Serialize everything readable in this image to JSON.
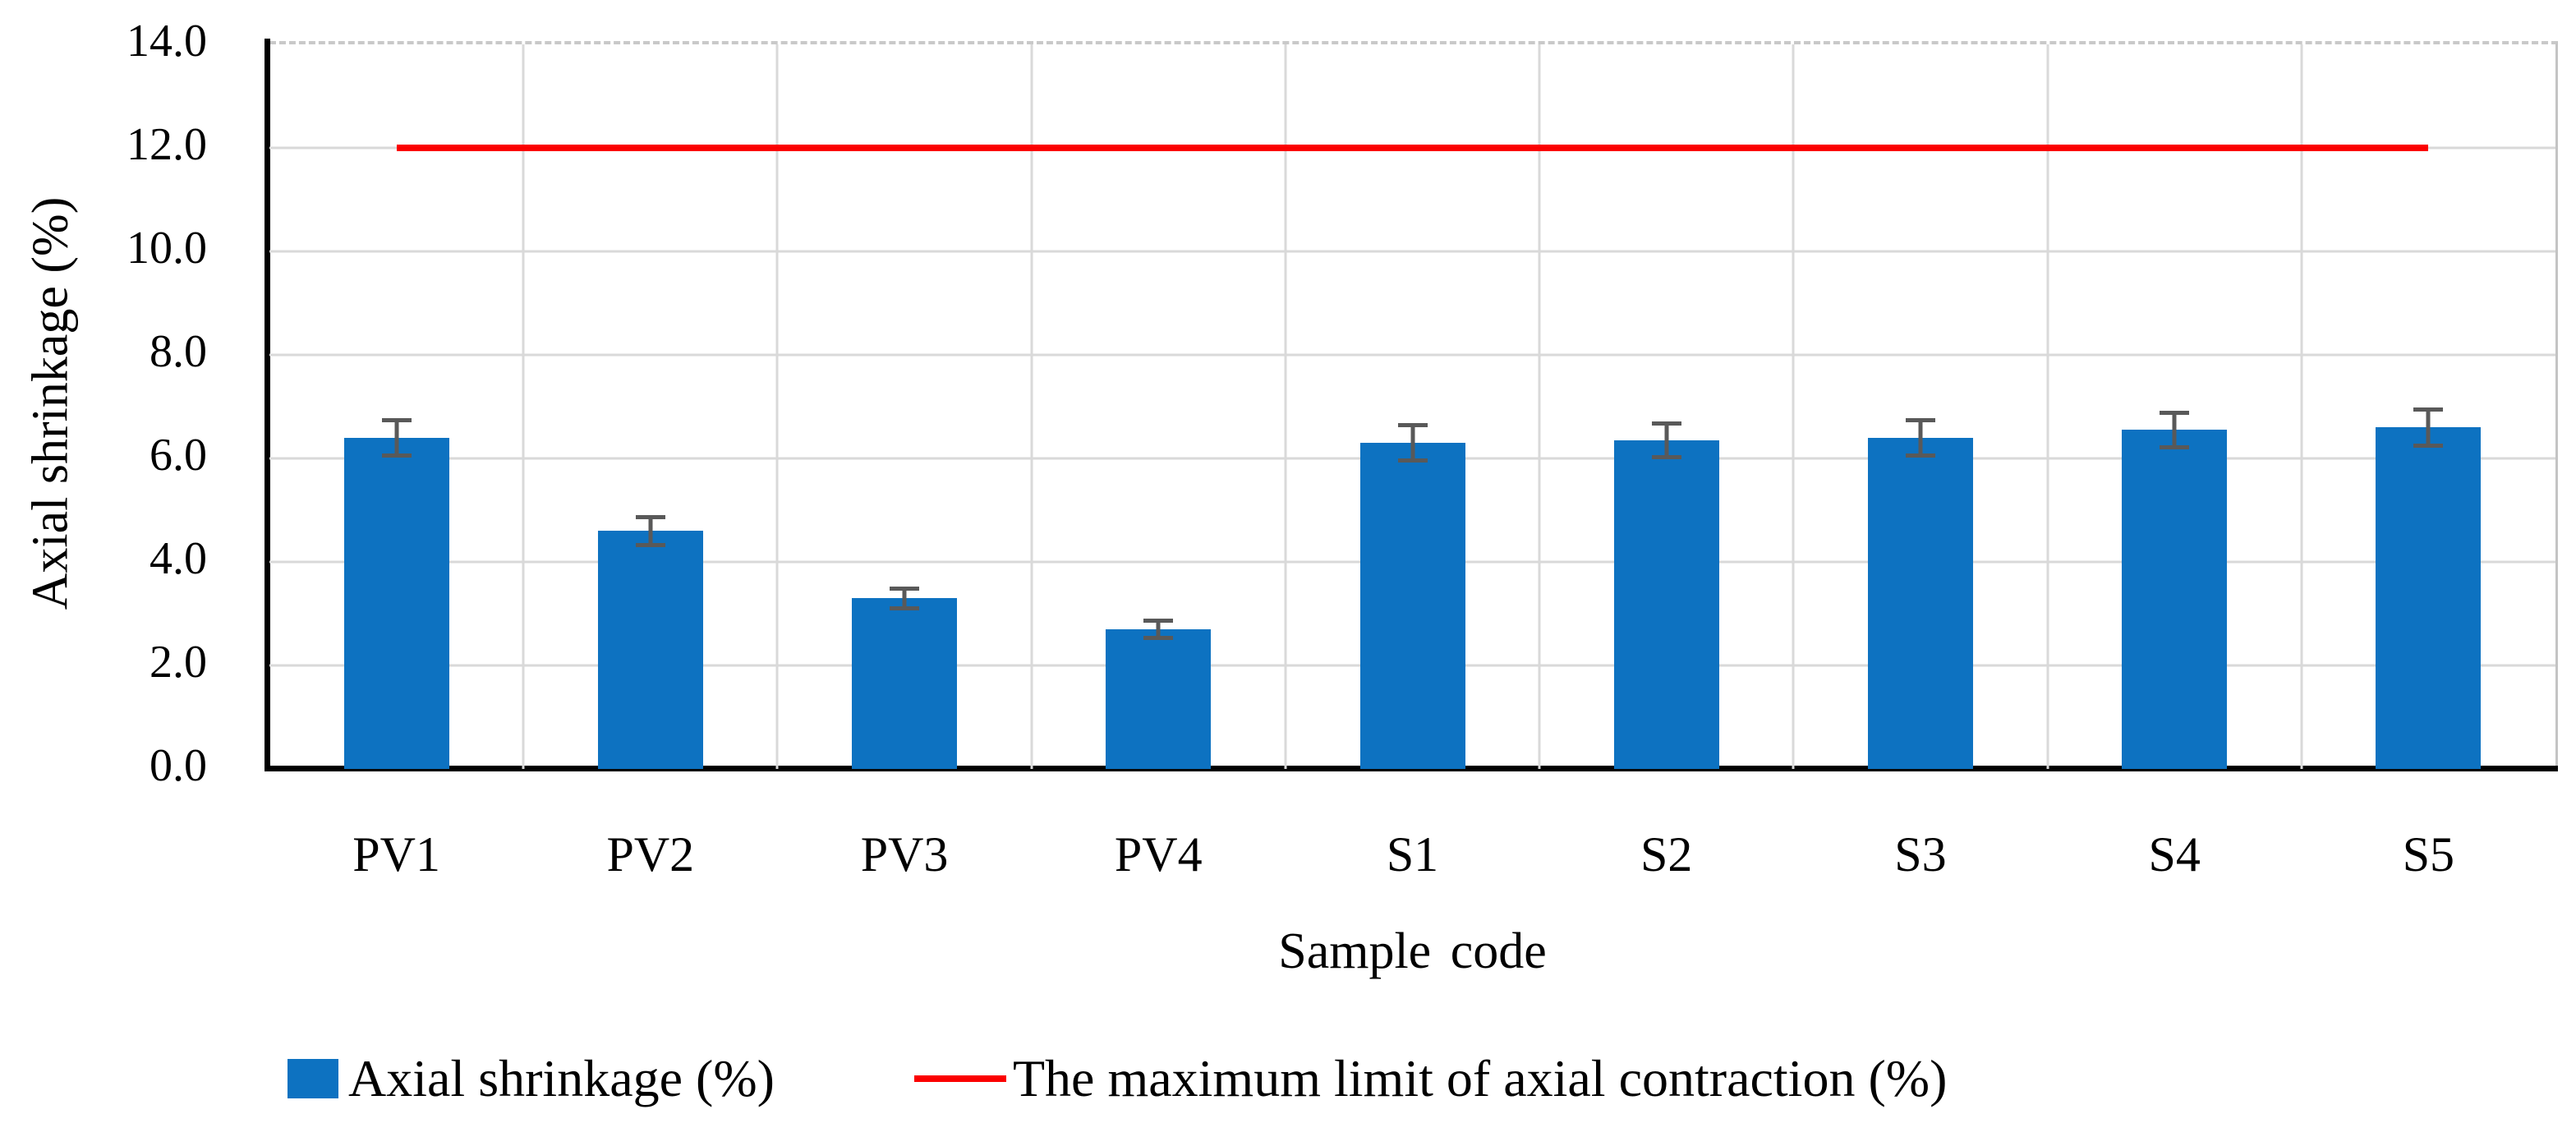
{
  "chart_data": {
    "type": "bar",
    "categories": [
      "PV1",
      "PV2",
      "PV3",
      "PV4",
      "S1",
      "S2",
      "S3",
      "S4",
      "S5"
    ],
    "series": [
      {
        "name": "Axial shrinkage (%)",
        "type": "bar",
        "color": "#0d72c1",
        "values": [
          6.4,
          4.6,
          3.3,
          2.7,
          6.3,
          6.35,
          6.4,
          6.55,
          6.6
        ],
        "error_bars": {
          "color": "#595959",
          "plus_minus": [
            0.35,
            0.28,
            0.2,
            0.18,
            0.35,
            0.33,
            0.35,
            0.34,
            0.36
          ]
        }
      },
      {
        "name": "The maximum limit of axial contraction (%)",
        "type": "line",
        "color": "#fb0000",
        "value": 12.0
      }
    ],
    "xlabel": "Sample code",
    "ylabel": "Axial shrinkage (%)",
    "ylim": [
      0,
      14
    ],
    "y_tick_step": 2,
    "y_tick_labels": [
      "0.0",
      "2.0",
      "4.0",
      "6.0",
      "8.0",
      "10.0",
      "12.0",
      "14.0"
    ],
    "grid": true,
    "grid_color": "#d9d9d9",
    "axis_color": "#000000",
    "legend_position": "bottom",
    "legend": [
      {
        "label": "Axial shrinkage (%)",
        "marker": "square",
        "color": "#0d72c1"
      },
      {
        "label": "The maximum limit of axial contraction (%)",
        "marker": "line",
        "color": "#fb0000"
      }
    ]
  }
}
